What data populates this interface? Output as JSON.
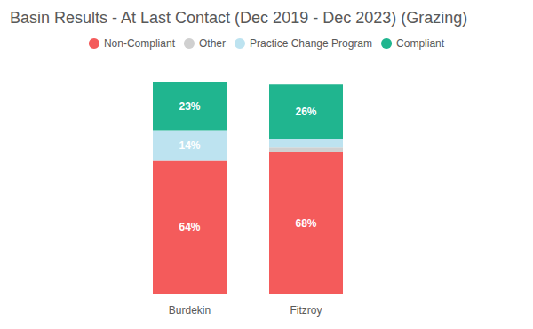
{
  "chart_data": {
    "type": "bar",
    "title": "Basin Results - At Last Contact (Dec 2019 - Dec 2023) (Grazing)",
    "categories": [
      "Burdekin",
      "Fitzroy"
    ],
    "stacked": true,
    "data_labels": true,
    "legend": "top",
    "grid": false,
    "tick_labels": "x",
    "ylim": [
      0,
      101
    ],
    "series": [
      {
        "name": "Non-Compliant",
        "color": "#f45b5b",
        "values": [
          64,
          68
        ],
        "value_labels": [
          "64%",
          "68%"
        ]
      },
      {
        "name": "Other",
        "color": "#d0d0d0",
        "values": [
          0,
          2
        ],
        "value_labels": [
          null,
          null
        ]
      },
      {
        "name": "Practice Change Program",
        "color": "#bde3f0",
        "values": [
          14,
          4
        ],
        "value_labels": [
          "14%",
          null
        ]
      },
      {
        "name": "Compliant",
        "color": "#20b58f",
        "values": [
          23,
          26
        ],
        "value_labels": [
          "23%",
          "26%"
        ]
      }
    ]
  }
}
